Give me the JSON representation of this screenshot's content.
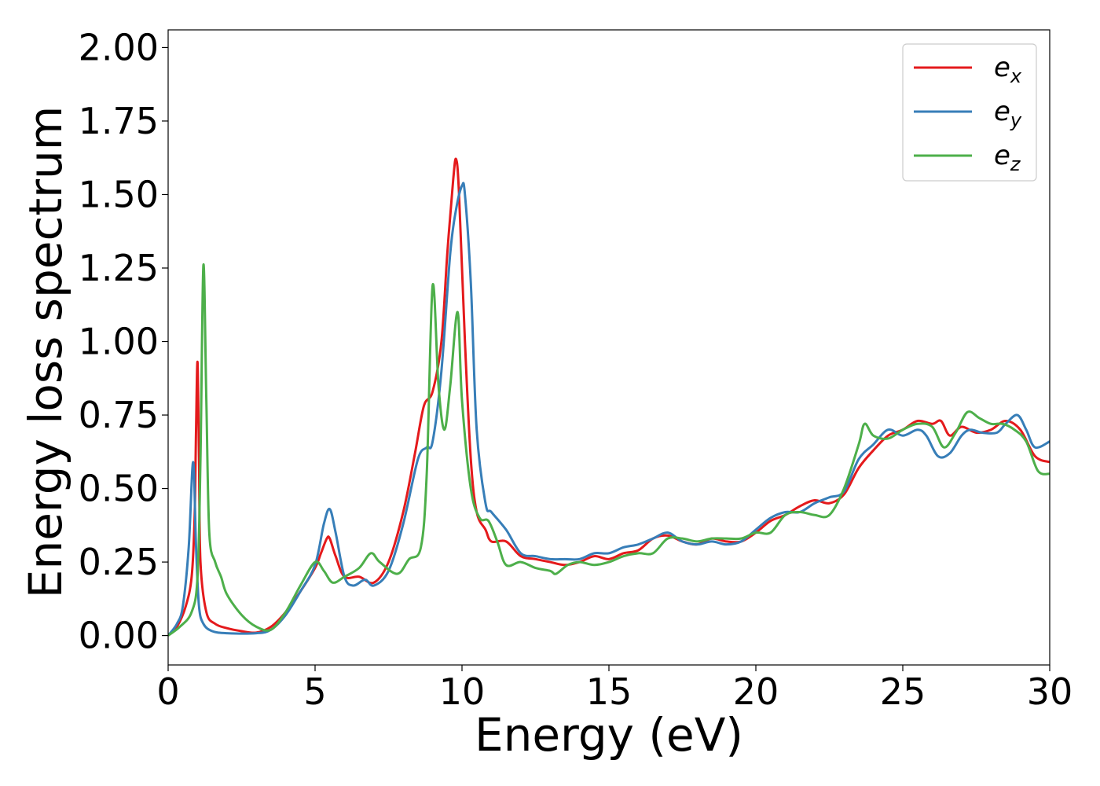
{
  "chart_data": {
    "type": "line",
    "xlabel": "Energy (eV)",
    "ylabel": "Energy loss spectrum",
    "xlim": [
      0,
      30
    ],
    "ylim": [
      -0.1,
      2.06
    ],
    "xticks": [
      "0",
      "5",
      "10",
      "15",
      "20",
      "25",
      "30"
    ],
    "yticks": [
      "0.00",
      "0.25",
      "0.50",
      "0.75",
      "1.00",
      "1.25",
      "1.50",
      "1.75",
      "2.00"
    ],
    "grid": false,
    "legend_position": "top-right",
    "series": [
      {
        "name": "e_x",
        "label_base": "e",
        "label_sub": "x",
        "color": "#e41a1c",
        "points": [
          [
            0,
            0
          ],
          [
            0.3,
            0.03
          ],
          [
            0.6,
            0.1
          ],
          [
            0.8,
            0.2
          ],
          [
            0.9,
            0.4
          ],
          [
            0.95,
            0.7
          ],
          [
            1.0,
            0.93
          ],
          [
            1.05,
            0.6
          ],
          [
            1.1,
            0.25
          ],
          [
            1.3,
            0.08
          ],
          [
            1.6,
            0.04
          ],
          [
            2.0,
            0.025
          ],
          [
            2.5,
            0.015
          ],
          [
            3.0,
            0.01
          ],
          [
            3.5,
            0.03
          ],
          [
            4.0,
            0.08
          ],
          [
            4.5,
            0.15
          ],
          [
            5.0,
            0.23
          ],
          [
            5.2,
            0.28
          ],
          [
            5.4,
            0.33
          ],
          [
            5.5,
            0.33
          ],
          [
            5.7,
            0.27
          ],
          [
            6.0,
            0.2
          ],
          [
            6.5,
            0.2
          ],
          [
            7.0,
            0.18
          ],
          [
            7.5,
            0.25
          ],
          [
            8.0,
            0.42
          ],
          [
            8.4,
            0.62
          ],
          [
            8.7,
            0.78
          ],
          [
            9.0,
            0.83
          ],
          [
            9.3,
            1.0
          ],
          [
            9.5,
            1.3
          ],
          [
            9.7,
            1.55
          ],
          [
            9.8,
            1.62
          ],
          [
            9.9,
            1.5
          ],
          [
            10.1,
            1.0
          ],
          [
            10.3,
            0.6
          ],
          [
            10.5,
            0.42
          ],
          [
            10.8,
            0.36
          ],
          [
            11.0,
            0.32
          ],
          [
            11.5,
            0.32
          ],
          [
            12.0,
            0.27
          ],
          [
            12.5,
            0.26
          ],
          [
            13.0,
            0.25
          ],
          [
            13.5,
            0.24
          ],
          [
            14.0,
            0.25
          ],
          [
            14.5,
            0.27
          ],
          [
            15.0,
            0.26
          ],
          [
            15.5,
            0.28
          ],
          [
            16.0,
            0.29
          ],
          [
            16.5,
            0.33
          ],
          [
            17.0,
            0.34
          ],
          [
            17.5,
            0.32
          ],
          [
            18.0,
            0.31
          ],
          [
            18.5,
            0.33
          ],
          [
            19.0,
            0.32
          ],
          [
            19.5,
            0.32
          ],
          [
            20.0,
            0.35
          ],
          [
            20.5,
            0.39
          ],
          [
            21.0,
            0.41
          ],
          [
            21.5,
            0.44
          ],
          [
            22.0,
            0.46
          ],
          [
            22.5,
            0.45
          ],
          [
            23.0,
            0.48
          ],
          [
            23.5,
            0.57
          ],
          [
            24.0,
            0.63
          ],
          [
            24.5,
            0.68
          ],
          [
            25.0,
            0.7
          ],
          [
            25.5,
            0.73
          ],
          [
            26.0,
            0.72
          ],
          [
            26.3,
            0.73
          ],
          [
            26.6,
            0.68
          ],
          [
            27.0,
            0.71
          ],
          [
            27.5,
            0.69
          ],
          [
            28.0,
            0.7
          ],
          [
            28.5,
            0.73
          ],
          [
            29.0,
            0.7
          ],
          [
            29.5,
            0.61
          ],
          [
            30.0,
            0.59
          ]
        ]
      },
      {
        "name": "e_y",
        "label_base": "e",
        "label_sub": "y",
        "color": "#377eb8",
        "points": [
          [
            0,
            0
          ],
          [
            0.3,
            0.04
          ],
          [
            0.5,
            0.1
          ],
          [
            0.7,
            0.3
          ],
          [
            0.85,
            0.59
          ],
          [
            0.95,
            0.3
          ],
          [
            1.05,
            0.1
          ],
          [
            1.2,
            0.04
          ],
          [
            1.5,
            0.015
          ],
          [
            2.0,
            0.008
          ],
          [
            3.0,
            0.008
          ],
          [
            3.5,
            0.02
          ],
          [
            4.0,
            0.07
          ],
          [
            4.5,
            0.15
          ],
          [
            5.0,
            0.24
          ],
          [
            5.3,
            0.38
          ],
          [
            5.5,
            0.43
          ],
          [
            5.7,
            0.35
          ],
          [
            6.0,
            0.2
          ],
          [
            6.3,
            0.17
          ],
          [
            6.7,
            0.19
          ],
          [
            7.0,
            0.17
          ],
          [
            7.5,
            0.22
          ],
          [
            8.0,
            0.38
          ],
          [
            8.5,
            0.6
          ],
          [
            8.8,
            0.64
          ],
          [
            9.0,
            0.66
          ],
          [
            9.3,
            0.9
          ],
          [
            9.6,
            1.3
          ],
          [
            9.8,
            1.45
          ],
          [
            10.0,
            1.53
          ],
          [
            10.1,
            1.5
          ],
          [
            10.3,
            1.2
          ],
          [
            10.5,
            0.7
          ],
          [
            10.8,
            0.45
          ],
          [
            11.0,
            0.42
          ],
          [
            11.5,
            0.36
          ],
          [
            12.0,
            0.28
          ],
          [
            12.5,
            0.27
          ],
          [
            13.0,
            0.26
          ],
          [
            13.5,
            0.26
          ],
          [
            14.0,
            0.26
          ],
          [
            14.5,
            0.28
          ],
          [
            15.0,
            0.28
          ],
          [
            15.5,
            0.3
          ],
          [
            16.0,
            0.31
          ],
          [
            16.5,
            0.33
          ],
          [
            17.0,
            0.35
          ],
          [
            17.5,
            0.32
          ],
          [
            18.0,
            0.31
          ],
          [
            18.5,
            0.32
          ],
          [
            19.0,
            0.31
          ],
          [
            19.5,
            0.32
          ],
          [
            20.0,
            0.36
          ],
          [
            20.5,
            0.4
          ],
          [
            21.0,
            0.42
          ],
          [
            21.5,
            0.42
          ],
          [
            22.0,
            0.45
          ],
          [
            22.5,
            0.47
          ],
          [
            23.0,
            0.49
          ],
          [
            23.5,
            0.6
          ],
          [
            24.0,
            0.65
          ],
          [
            24.5,
            0.7
          ],
          [
            25.0,
            0.68
          ],
          [
            25.5,
            0.7
          ],
          [
            25.8,
            0.68
          ],
          [
            26.2,
            0.61
          ],
          [
            26.6,
            0.62
          ],
          [
            27.0,
            0.68
          ],
          [
            27.3,
            0.7
          ],
          [
            27.7,
            0.69
          ],
          [
            28.2,
            0.69
          ],
          [
            28.5,
            0.72
          ],
          [
            28.9,
            0.75
          ],
          [
            29.2,
            0.7
          ],
          [
            29.5,
            0.64
          ],
          [
            30.0,
            0.66
          ]
        ]
      },
      {
        "name": "e_z",
        "label_base": "e",
        "label_sub": "z",
        "color": "#4daf4a",
        "points": [
          [
            0,
            0
          ],
          [
            0.4,
            0.03
          ],
          [
            0.8,
            0.08
          ],
          [
            1.0,
            0.2
          ],
          [
            1.1,
            0.6
          ],
          [
            1.2,
            1.26
          ],
          [
            1.3,
            0.8
          ],
          [
            1.4,
            0.35
          ],
          [
            1.6,
            0.25
          ],
          [
            1.8,
            0.2
          ],
          [
            2.0,
            0.14
          ],
          [
            2.5,
            0.07
          ],
          [
            3.0,
            0.03
          ],
          [
            3.5,
            0.02
          ],
          [
            4.0,
            0.08
          ],
          [
            4.5,
            0.17
          ],
          [
            5.0,
            0.25
          ],
          [
            5.3,
            0.22
          ],
          [
            5.6,
            0.18
          ],
          [
            6.0,
            0.2
          ],
          [
            6.5,
            0.23
          ],
          [
            6.9,
            0.28
          ],
          [
            7.2,
            0.25
          ],
          [
            7.8,
            0.21
          ],
          [
            8.2,
            0.26
          ],
          [
            8.6,
            0.3
          ],
          [
            8.8,
            0.55
          ],
          [
            9.0,
            1.19
          ],
          [
            9.2,
            0.85
          ],
          [
            9.4,
            0.7
          ],
          [
            9.6,
            0.85
          ],
          [
            9.85,
            1.1
          ],
          [
            10.0,
            0.8
          ],
          [
            10.3,
            0.5
          ],
          [
            10.6,
            0.4
          ],
          [
            10.9,
            0.39
          ],
          [
            11.2,
            0.32
          ],
          [
            11.5,
            0.24
          ],
          [
            12.0,
            0.25
          ],
          [
            12.5,
            0.23
          ],
          [
            13.0,
            0.22
          ],
          [
            13.2,
            0.21
          ],
          [
            13.6,
            0.24
          ],
          [
            14.0,
            0.25
          ],
          [
            14.5,
            0.24
          ],
          [
            15.0,
            0.25
          ],
          [
            15.5,
            0.27
          ],
          [
            16.0,
            0.28
          ],
          [
            16.5,
            0.28
          ],
          [
            17.0,
            0.33
          ],
          [
            17.5,
            0.33
          ],
          [
            18.0,
            0.32
          ],
          [
            18.5,
            0.33
          ],
          [
            19.0,
            0.33
          ],
          [
            19.5,
            0.33
          ],
          [
            20.0,
            0.35
          ],
          [
            20.5,
            0.35
          ],
          [
            21.0,
            0.41
          ],
          [
            21.5,
            0.42
          ],
          [
            22.0,
            0.41
          ],
          [
            22.5,
            0.41
          ],
          [
            23.0,
            0.5
          ],
          [
            23.5,
            0.65
          ],
          [
            23.7,
            0.72
          ],
          [
            24.0,
            0.68
          ],
          [
            24.5,
            0.67
          ],
          [
            25.0,
            0.7
          ],
          [
            25.5,
            0.72
          ],
          [
            26.0,
            0.71
          ],
          [
            26.4,
            0.64
          ],
          [
            26.8,
            0.69
          ],
          [
            27.2,
            0.76
          ],
          [
            27.6,
            0.74
          ],
          [
            28.0,
            0.72
          ],
          [
            28.4,
            0.72
          ],
          [
            28.8,
            0.7
          ],
          [
            29.2,
            0.66
          ],
          [
            29.6,
            0.56
          ],
          [
            30.0,
            0.55
          ]
        ]
      }
    ]
  }
}
